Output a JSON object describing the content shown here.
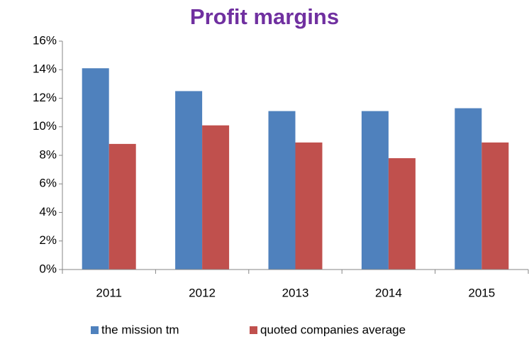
{
  "chart_data": {
    "type": "bar",
    "title": "Profit margins",
    "categories": [
      "2011",
      "2012",
      "2013",
      "2014",
      "2015"
    ],
    "series": [
      {
        "name": "the mission tm",
        "color": "#4f81bd",
        "values": [
          14.1,
          12.5,
          11.1,
          11.1,
          11.3
        ]
      },
      {
        "name": "quoted companies average",
        "color": "#c0504d",
        "values": [
          8.8,
          10.1,
          8.9,
          7.8,
          8.9
        ]
      }
    ],
    "ylim": [
      0,
      16
    ],
    "yticks": [
      {
        "value": 0,
        "label": "0%"
      },
      {
        "value": 2,
        "label": "2%"
      },
      {
        "value": 4,
        "label": "4%"
      },
      {
        "value": 6,
        "label": "6%"
      },
      {
        "value": 8,
        "label": "8%"
      },
      {
        "value": 10,
        "label": "10%"
      },
      {
        "value": 12,
        "label": "12%"
      },
      {
        "value": 14,
        "label": "14%"
      },
      {
        "value": 16,
        "label": "16%"
      }
    ],
    "legend": "bottom"
  }
}
